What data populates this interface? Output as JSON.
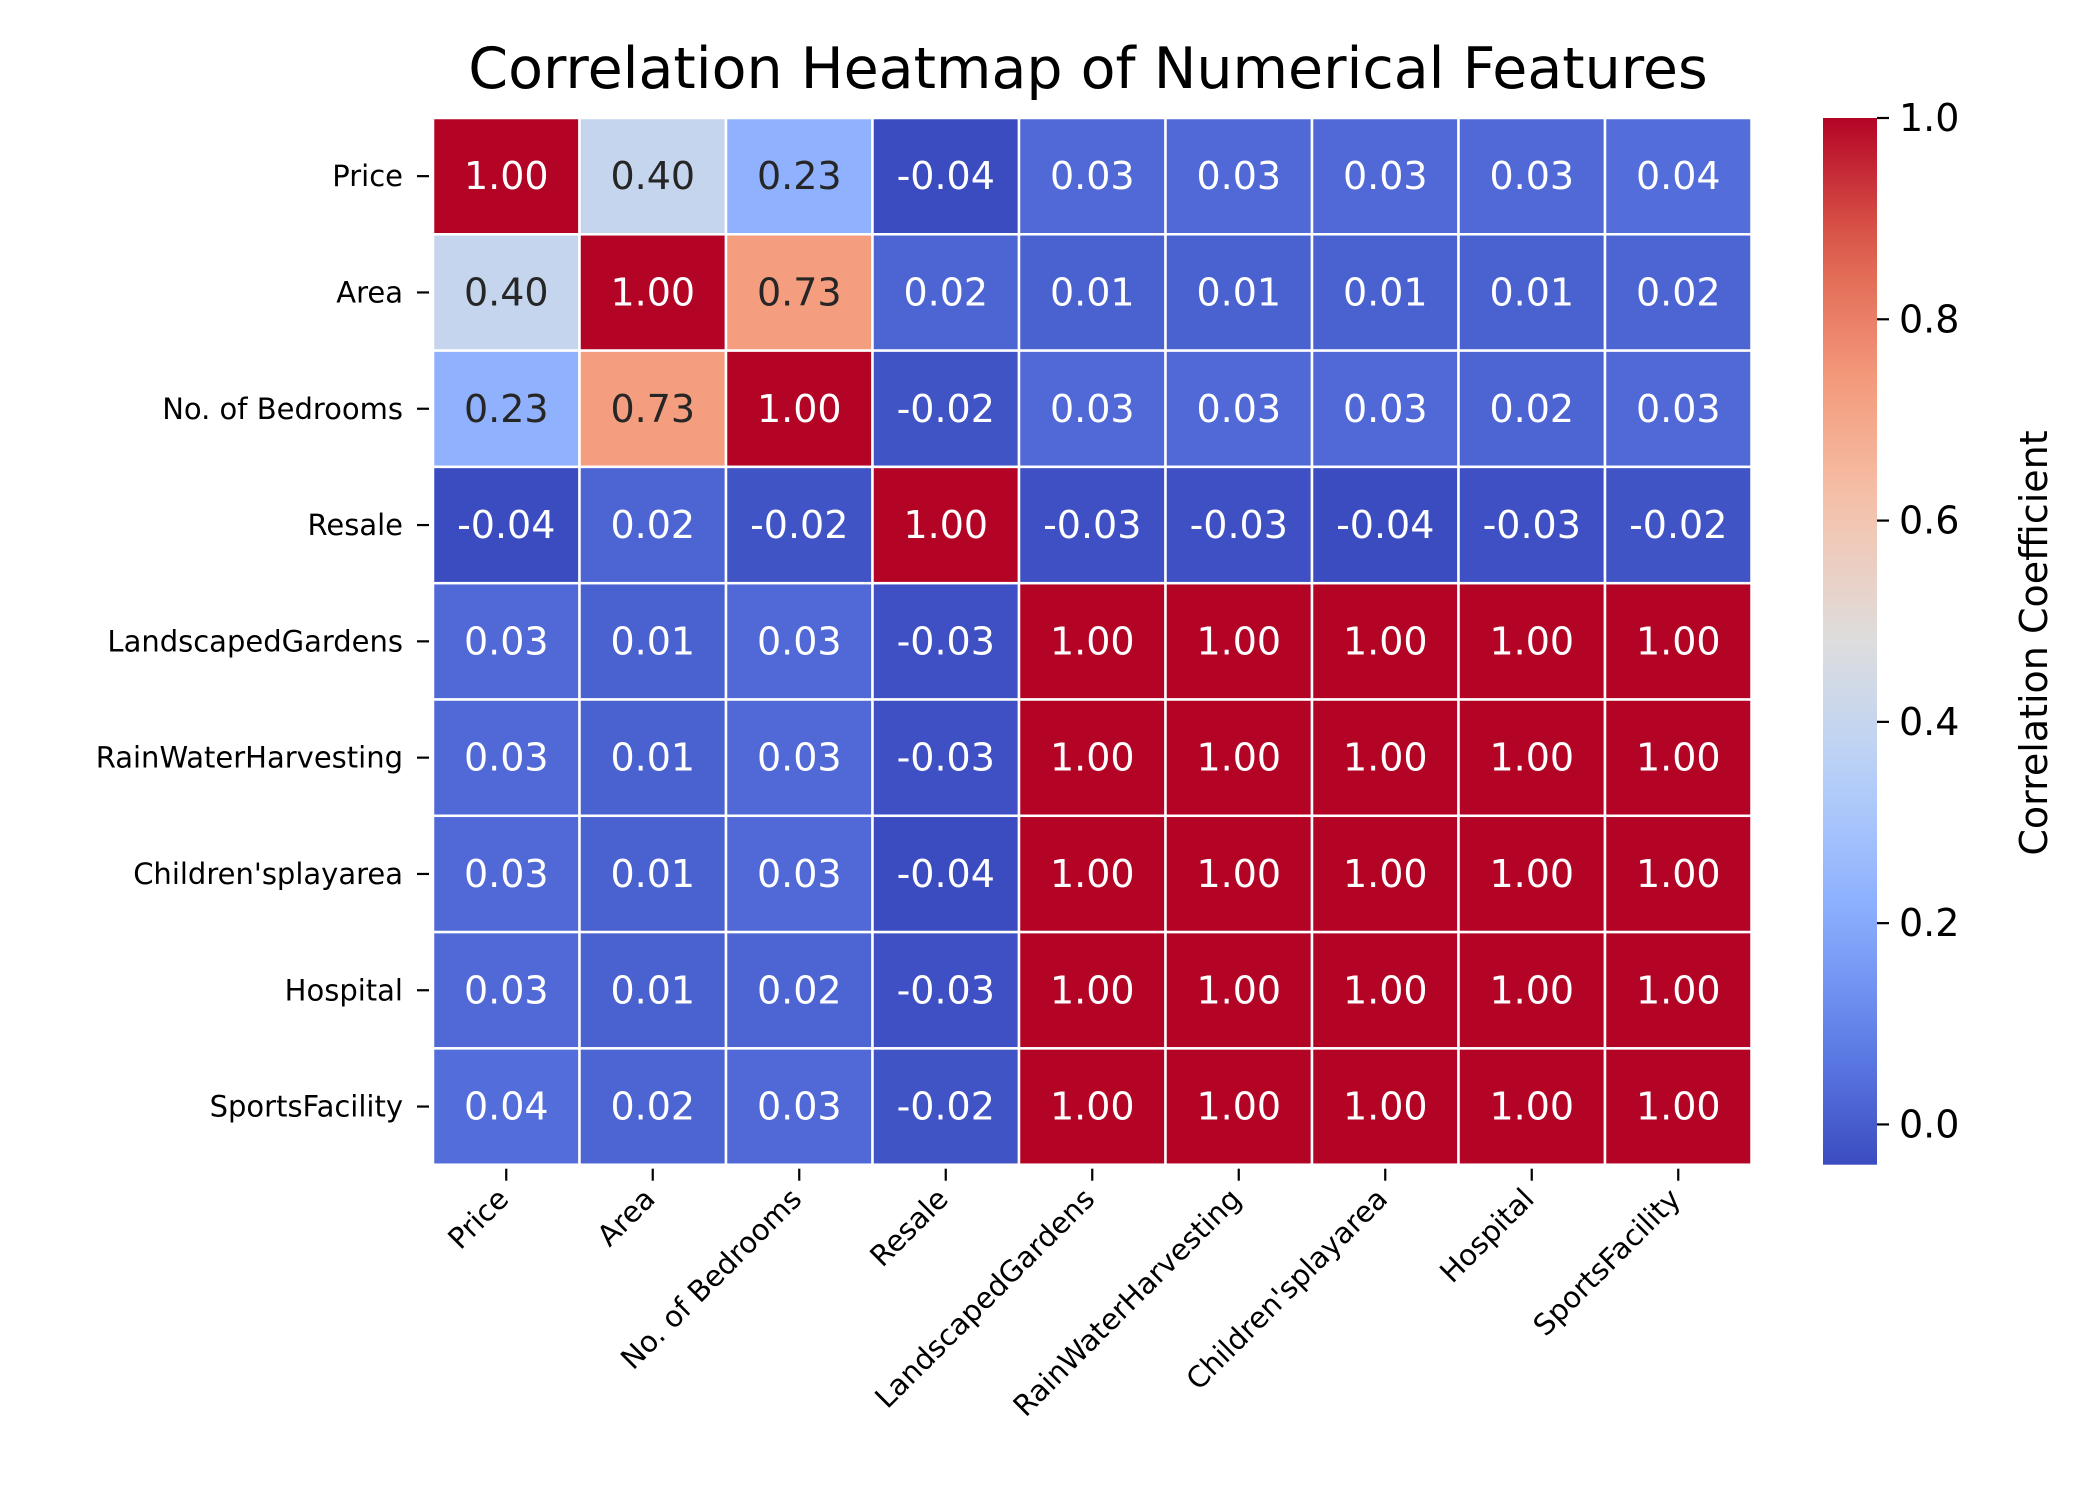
{
  "chart_data": {
    "type": "heatmap",
    "title": "Correlation Heatmap of Numerical Features",
    "colorbar_label": "Correlation Coefficient",
    "colormap": "coolwarm",
    "vmin": -0.04,
    "vmax": 1.0,
    "colorbar_ticks": [
      "0.0",
      "0.2",
      "0.4",
      "0.6",
      "0.8",
      "1.0"
    ],
    "value_format": "2 decimals",
    "row_labels": [
      "Price",
      "Area",
      "No. of Bedrooms",
      "Resale",
      "LandscapedGardens",
      "RainWaterHarvesting",
      "Children'splayarea",
      "Hospital",
      "SportsFacility"
    ],
    "col_labels": [
      "Price",
      "Area",
      "No. of Bedrooms",
      "Resale",
      "LandscapedGardens",
      "RainWaterHarvesting",
      "Children'splayarea",
      "Hospital",
      "SportsFacility"
    ],
    "values": [
      [
        1.0,
        0.4,
        0.23,
        -0.04,
        0.03,
        0.03,
        0.03,
        0.03,
        0.04
      ],
      [
        0.4,
        1.0,
        0.73,
        0.02,
        0.01,
        0.01,
        0.01,
        0.01,
        0.02
      ],
      [
        0.23,
        0.73,
        1.0,
        -0.02,
        0.03,
        0.03,
        0.03,
        0.02,
        0.03
      ],
      [
        -0.04,
        0.02,
        -0.02,
        1.0,
        -0.03,
        -0.03,
        -0.04,
        -0.03,
        -0.02
      ],
      [
        0.03,
        0.01,
        0.03,
        -0.03,
        1.0,
        1.0,
        1.0,
        1.0,
        1.0
      ],
      [
        0.03,
        0.01,
        0.03,
        -0.03,
        1.0,
        1.0,
        1.0,
        1.0,
        1.0
      ],
      [
        0.03,
        0.01,
        0.03,
        -0.04,
        1.0,
        1.0,
        1.0,
        1.0,
        1.0
      ],
      [
        0.03,
        0.01,
        0.02,
        -0.03,
        1.0,
        1.0,
        1.0,
        1.0,
        1.0
      ],
      [
        0.04,
        0.02,
        0.03,
        -0.02,
        1.0,
        1.0,
        1.0,
        1.0,
        1.0
      ]
    ]
  }
}
